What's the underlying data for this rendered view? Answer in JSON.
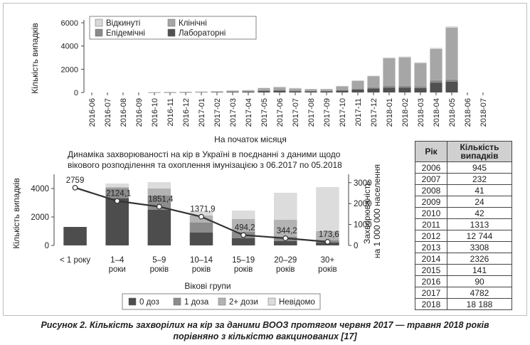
{
  "colors": {
    "rejected": "#d8d8d8",
    "clinical": "#a6a6a6",
    "epidemic": "#8a8a8a",
    "lab": "#505050",
    "dose0": "#4d4d4d",
    "dose1": "#8c8c8c",
    "dose2plus": "#b3b3b3",
    "unknown": "#dcdcdc",
    "line": "#333333"
  },
  "table": {
    "header_year": "Рік",
    "header_count": "Кількість випадків",
    "rows": [
      [
        "2006",
        "945"
      ],
      [
        "2007",
        "232"
      ],
      [
        "2008",
        "41"
      ],
      [
        "2009",
        "24"
      ],
      [
        "2010",
        "42"
      ],
      [
        "2011",
        "1313"
      ],
      [
        "2012",
        "12 744"
      ],
      [
        "2013",
        "3308"
      ],
      [
        "2014",
        "2326"
      ],
      [
        "2015",
        "141"
      ],
      [
        "2016",
        "90"
      ],
      [
        "2017",
        "4782"
      ],
      [
        "2018",
        "18 188"
      ]
    ]
  },
  "caption_line1": "Рисунок 2. Кількість захворілих на кір за даними ВООЗ протягом червня 2017 — травня 2018 років",
  "caption_line2": "порівняно з кількістю вакцинованих [17]",
  "chart_data": [
    {
      "type": "bar",
      "stacked": true,
      "xlabel": "На початок місяця",
      "ylabel": "Кількість випадків",
      "ylim": [
        0,
        6000
      ],
      "yticks": [
        "0",
        "2000",
        "4000",
        "6000"
      ],
      "grid": false,
      "legend_position": "top-left",
      "categories": [
        "2016-06",
        "2016-07",
        "2016-08",
        "2016-09",
        "2016-10",
        "2016-11",
        "2016-12",
        "2017-01",
        "2017-02",
        "2017-03",
        "2017-04",
        "2017-05",
        "2017-06",
        "2017-07",
        "2017-08",
        "2017-09",
        "2017-10",
        "2017-11",
        "2017-12",
        "2018-01",
        "2018-02",
        "2018-03",
        "2018-04",
        "2018-05",
        "2018-06",
        "2018-07"
      ],
      "series": [
        {
          "name": "Лабораторні",
          "color_key": "lab",
          "values": [
            0,
            0,
            0,
            0,
            10,
            15,
            20,
            30,
            40,
            60,
            80,
            130,
            150,
            110,
            90,
            90,
            150,
            250,
            350,
            400,
            420,
            380,
            850,
            920,
            0,
            0
          ]
        },
        {
          "name": "Епідемічні",
          "color_key": "epidemic",
          "values": [
            0,
            0,
            0,
            0,
            5,
            5,
            10,
            10,
            15,
            20,
            30,
            60,
            80,
            60,
            40,
            50,
            70,
            100,
            100,
            150,
            150,
            150,
            200,
            200,
            0,
            0
          ]
        },
        {
          "name": "Клінічні",
          "color_key": "clinical",
          "values": [
            0,
            0,
            0,
            0,
            20,
            30,
            30,
            40,
            50,
            80,
            80,
            180,
            220,
            180,
            150,
            150,
            300,
            650,
            950,
            2400,
            2450,
            2000,
            2700,
            4450,
            0,
            0
          ]
        },
        {
          "name": "Відкинуті",
          "color_key": "rejected",
          "values": [
            0,
            0,
            0,
            0,
            10,
            10,
            10,
            10,
            10,
            20,
            20,
            40,
            50,
            40,
            30,
            30,
            50,
            50,
            50,
            70,
            80,
            70,
            100,
            130,
            0,
            0
          ]
        }
      ]
    },
    {
      "type": "bar",
      "stacked": true,
      "title": "Динаміка захворюваності на кір в Україні в поєднанні з даними щодо вікового розподілення та охоплення імунізацією з 06.2017 по 05.2018",
      "xlabel": "Вікові групи",
      "ylabel": "Кількість випадків",
      "ylim": [
        0,
        5000
      ],
      "yticks": [
        "0",
        "2000",
        "4000"
      ],
      "y2label": "Захворюваність на 1 000 000 населення",
      "y2lim": [
        0,
        3400
      ],
      "y2ticks": [
        "0",
        "1000",
        "2000",
        "3000"
      ],
      "grid": false,
      "legend_position": "bottom",
      "categories": [
        "< 1 року",
        "1–4 роки",
        "5–9 років",
        "10–14 років",
        "15–19 років",
        "20–29 років",
        "30+ років"
      ],
      "series": [
        {
          "name": "0 доз",
          "color_key": "dose0",
          "values": [
            1300,
            3300,
            2500,
            900,
            500,
            300,
            200
          ]
        },
        {
          "name": "1 доза",
          "color_key": "dose1",
          "values": [
            0,
            700,
            1000,
            700,
            450,
            300,
            150
          ]
        },
        {
          "name": "2+ дози",
          "color_key": "dose2plus",
          "values": [
            0,
            100,
            500,
            500,
            900,
            1200,
            650
          ]
        },
        {
          "name": "Невідомо",
          "color_key": "unknown",
          "values": [
            0,
            250,
            450,
            300,
            600,
            1900,
            3100
          ]
        }
      ],
      "line": {
        "axis": "right",
        "values": [
          2759,
          2124.1,
          1851.4,
          1371.9,
          494.2,
          344.2,
          173.6
        ],
        "labels": [
          "2759",
          "2124,1",
          "1851,4",
          "1371,9",
          "494,2",
          "344,2",
          "173,6"
        ]
      }
    }
  ]
}
